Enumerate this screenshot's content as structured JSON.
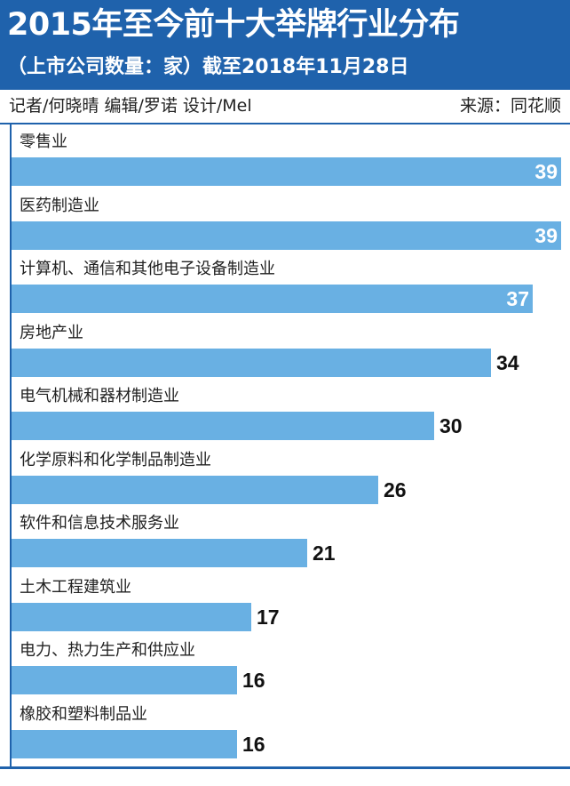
{
  "header": {
    "title": "2015年至今前十大举牌行业分布",
    "subtitle": "（上市公司数量：家）截至2018年11月28日"
  },
  "credits": {
    "byline": "记者/何晓晴  编辑/罗诺  设计/Mel",
    "source": "来源：同花顺"
  },
  "colors": {
    "header_bg": "#1f62ac",
    "bar": "#69b0e3",
    "value_inside": "#ffffff"
  },
  "chart_data": {
    "type": "bar",
    "orientation": "horizontal",
    "title": "2015年至今前十大举牌行业分布",
    "subtitle": "（上市公司数量：家）截至2018年11月28日",
    "xlim": [
      0,
      39
    ],
    "grid": false,
    "categories": [
      "零售业",
      "医药制造业",
      "计算机、通信和其他电子设备制造业",
      "房地产业",
      "电气机械和器材制造业",
      "化学原料和化学制品制造业",
      "软件和信息技术服务业",
      "土木工程建筑业",
      "电力、热力生产和供应业",
      "橡胶和塑料制品业"
    ],
    "values": [
      39,
      39,
      37,
      34,
      30,
      26,
      21,
      17,
      16,
      16
    ]
  }
}
